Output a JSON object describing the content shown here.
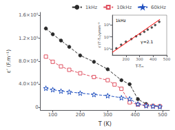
{
  "chart_data": [
    {
      "type": "line",
      "xlabel": "T (K)",
      "ylabel": "ε’ (F.m⁻¹)",
      "xlim": [
        55,
        525
      ],
      "xticks": [
        100,
        200,
        300,
        400,
        500
      ],
      "ylim": [
        -5000,
        165000
      ],
      "yticks": [
        0,
        {
          "value": 40000,
          "label": "4.0×10⁴"
        },
        {
          "value": 80000,
          "label": "8.0×10⁴"
        },
        {
          "value": 120000,
          "label": "1.2×10⁵"
        },
        {
          "value": 160000,
          "label": "1.6×10⁵"
        }
      ],
      "grid": false,
      "legend": "top",
      "series": [
        {
          "name": "1kHz",
          "color": "#2a2a2a",
          "marker": "circle",
          "line_style": "dashed",
          "x": [
            75,
            100,
            130,
            160,
            200,
            250,
            300,
            350,
            380,
            410,
            440,
            465,
            490
          ],
          "values": [
            137000,
            127000,
            116000,
            105000,
            90000,
            79000,
            66000,
            47000,
            40000,
            14000,
            5500,
            2800,
            1800
          ]
        },
        {
          "name": "10kHz",
          "color": "#e05060",
          "marker": "open square",
          "line_style": "dashed",
          "x": [
            75,
            100,
            130,
            160,
            200,
            250,
            300,
            325,
            350,
            380,
            410,
            440,
            465,
            490
          ],
          "values": [
            88000,
            79000,
            71000,
            65000,
            59000,
            52500,
            47000,
            39500,
            32000,
            8500,
            4500,
            2800,
            2000,
            1400
          ]
        },
        {
          "name": "60kHz",
          "color": "#2050c0",
          "marker": "open star",
          "line_style": "dashed",
          "x": [
            75,
            100,
            130,
            160,
            200,
            250,
            300,
            350,
            380,
            410,
            440,
            465,
            490
          ],
          "values": [
            33000,
            30500,
            28000,
            26500,
            24500,
            22000,
            20000,
            16500,
            14500,
            5500,
            2500,
            1600,
            1000
          ]
        }
      ]
    },
    {
      "type": "scatter",
      "xlabel": "T-Tₘ",
      "ylabel": "ε′(T′-Tₘ)γmm⁻¹",
      "xlim": [
        100,
        500
      ],
      "xticks": [
        200,
        300,
        400,
        500
      ],
      "ylim": [
        3.5,
        6.8
      ],
      "yticks": [
        {
          "value": 4,
          "label": "10⁴"
        },
        {
          "value": 5,
          "label": "10⁵"
        },
        {
          "value": 6,
          "label": "10⁶"
        }
      ],
      "grid": false,
      "annotations": [
        "1kHz",
        "γ=2.1"
      ],
      "series": [
        {
          "type": "scatter",
          "color": "#2a2a2a",
          "marker": "circle",
          "x": [
            130,
            165,
            200,
            240,
            275,
            305,
            335,
            360,
            390,
            415,
            445
          ],
          "values": [
            4.05,
            4.35,
            4.6,
            4.82,
            5.05,
            5.22,
            5.42,
            5.6,
            5.78,
            5.98,
            6.25
          ]
        },
        {
          "type": "line",
          "color": "red",
          "line_style": "solid",
          "x": [
            100,
            450
          ],
          "values": [
            3.72,
            6.45
          ]
        }
      ]
    }
  ]
}
